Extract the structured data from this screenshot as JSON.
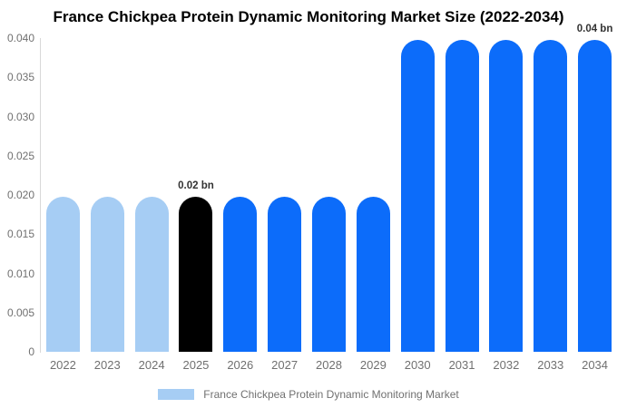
{
  "chart_data": {
    "type": "bar",
    "title": "France Chickpea Protein Dynamic Monitoring Market Size (2022-2034)",
    "categories": [
      "2022",
      "2023",
      "2024",
      "2025",
      "2026",
      "2027",
      "2028",
      "2029",
      "2030",
      "2031",
      "2032",
      "2033",
      "2034"
    ],
    "values": [
      0.0198,
      0.0198,
      0.0198,
      0.0198,
      0.0198,
      0.0198,
      0.0198,
      0.0198,
      0.0398,
      0.0398,
      0.0398,
      0.0398,
      0.0398
    ],
    "bar_colors": [
      "#A6CDF4",
      "#A6CDF4",
      "#A6CDF4",
      "#000000",
      "#0C6CFA",
      "#0C6CFA",
      "#0C6CFA",
      "#0C6CFA",
      "#0C6CFA",
      "#0C6CFA",
      "#0C6CFA",
      "#0C6CFA",
      "#0C6CFA"
    ],
    "unit": "bn",
    "xlabel": "",
    "ylabel": "",
    "ylim": [
      0,
      0.04
    ],
    "y_ticks": [
      "0",
      "0.005",
      "0.010",
      "0.015",
      "0.020",
      "0.025",
      "0.030",
      "0.035",
      "0.040"
    ],
    "grid": "off",
    "annotations": [
      {
        "category": "2025",
        "text": "0.02 bn"
      },
      {
        "category": "2034",
        "text": "0.04 bn"
      }
    ],
    "legend": {
      "position": "bottom",
      "entries": [
        {
          "label": "France Chickpea Protein Dynamic Monitoring Market",
          "color": "#A6CDF4"
        }
      ]
    }
  },
  "colors": {
    "background": "#FFFFFF",
    "axis_line": "#D8D8D8",
    "tick_text": "#707070",
    "annotation_text": "#333333",
    "title_text": "#000000"
  }
}
